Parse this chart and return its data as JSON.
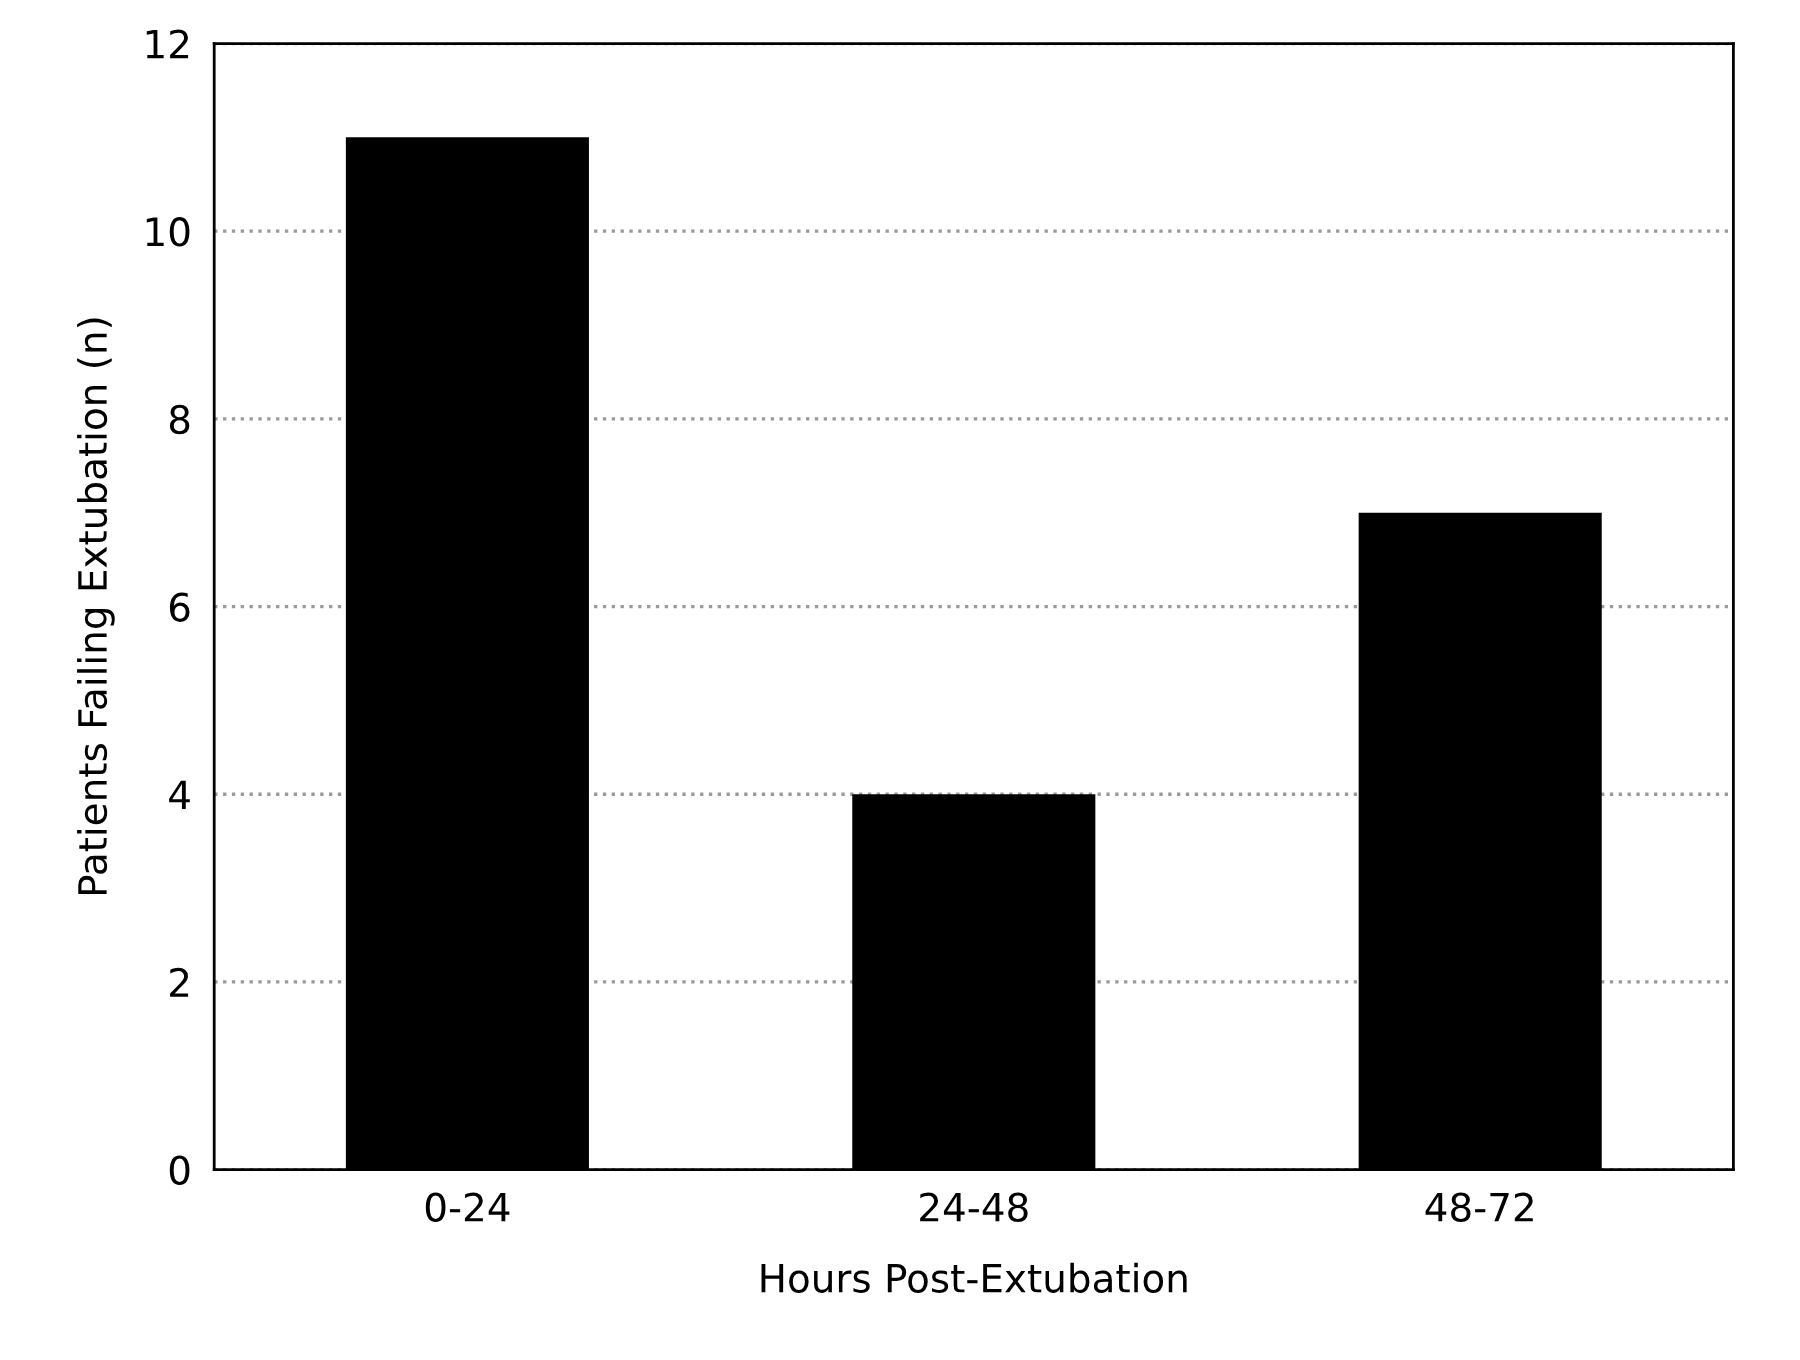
{
  "chart_data": {
    "type": "bar",
    "xlabel": "Hours Post-Extubation",
    "ylabel": "Patients Failing Extubation (n)",
    "categories": [
      "0-24",
      "24-48",
      "48-72"
    ],
    "values": [
      11,
      4,
      7
    ],
    "color": "#000000",
    "ylim": [
      0,
      12
    ],
    "yticks": [
      0,
      2,
      4,
      6,
      8,
      10,
      12
    ],
    "grid": "y"
  }
}
